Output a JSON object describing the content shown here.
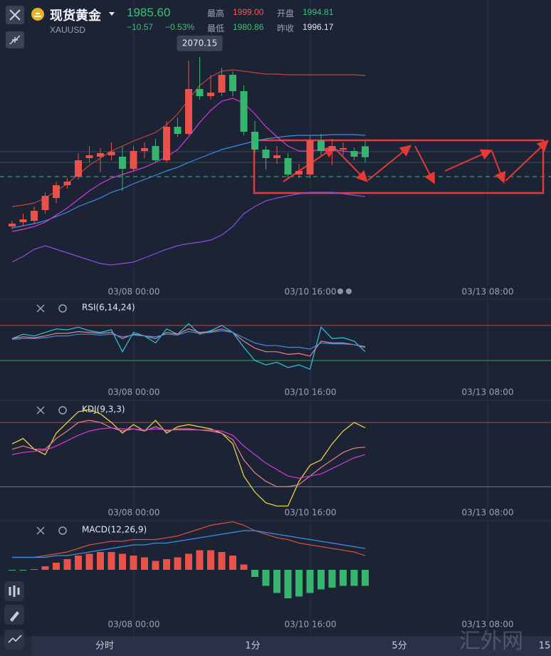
{
  "header": {
    "name": "现货黄金",
    "symbol": "XAUUSD",
    "price": "1985.60",
    "change": "−10.57",
    "change_pct": "−0.53%",
    "stats": [
      {
        "label": "最高",
        "value": "1999.00",
        "color": "#f05a50"
      },
      {
        "label": "开盘",
        "value": "1994.81",
        "color": "#3cc07a"
      },
      {
        "label": "最低",
        "value": "1980.86",
        "color": "#3cc07a"
      },
      {
        "label": "昨收",
        "value": "1996.17",
        "color": "#e6e9ef"
      }
    ]
  },
  "chart_data": [
    {
      "type": "candlestick",
      "up_color": "#e8524a",
      "down_color": "#35b56e",
      "ylim": [
        1878,
        2118
      ],
      "x_labels": [
        "03/08 00:00",
        "03/10 16:00",
        "03/13 08:00"
      ],
      "open": [
        1927.2,
        1930.8,
        1932,
        1941,
        1951.2,
        1962,
        1969.2,
        1984.8,
        1986,
        1987.2,
        1986,
        1975.8,
        1990.8,
        1995,
        1983,
        2011.2,
        2005.2,
        2043,
        2037,
        2040,
        2055,
        2041.2,
        2007,
        1992,
        1984.8,
        1984.8,
        1971,
        1971,
        1999.8,
        1990.8,
        1992,
        1990.8,
        1994.81
      ],
      "close": [
        1929.6,
        1933.2,
        1940.4,
        1953,
        1962,
        1965,
        1983,
        1987.2,
        1989,
        1990.2,
        1975.8,
        1990.8,
        1993.2,
        1983,
        2011.2,
        2005.2,
        2043,
        2037,
        2040,
        2055,
        2041.2,
        2007,
        1992,
        1984.8,
        1987.2,
        1971,
        1974,
        1999.8,
        1990.8,
        1995,
        1993.2,
        1986,
        1985.6
      ],
      "high": [
        1932,
        1938,
        1944,
        1956,
        1965,
        1968,
        1989,
        1995,
        1993.2,
        1998,
        1995,
        1995,
        1998,
        2001,
        2016,
        2019,
        2067,
        2070.15,
        2055,
        2061,
        2058,
        2046,
        2016,
        1995,
        1995,
        1989,
        1980,
        2004,
        2005.2,
        2001,
        1998,
        1993.8,
        1999
      ],
      "low": [
        1924.8,
        1927.2,
        1929,
        1938,
        1947,
        1959,
        1966.8,
        1981.2,
        1972.8,
        1983,
        1957.2,
        1974,
        1984.8,
        1981.2,
        1981.2,
        2002.8,
        2004,
        2034,
        2034,
        2037,
        2037,
        2004,
        1989,
        1975.2,
        1980,
        1968,
        1968,
        1968,
        1987.2,
        1978.8,
        1987.2,
        1983,
        1980.86
      ],
      "series": [
        {
          "color": "#c0463a",
          "values": [
            1944,
            1945.2,
            1947,
            1951.2,
            1957.2,
            1963.2,
            1971,
            1978.8,
            1984.8,
            1990.8,
            1995,
            1999.2,
            2002.8,
            2006.4,
            2013,
            2022,
            2034,
            2046,
            2053.2,
            2058,
            2059.2,
            2058,
            2056.8,
            2055.6,
            2055.6,
            2055,
            2055,
            2055,
            2055,
            2055,
            2055,
            2055,
            2054.4
          ]
        },
        {
          "color": "#3d8ee8",
          "values": [
            1926,
            1927.8,
            1929.6,
            1932,
            1935.6,
            1939.2,
            1944,
            1947.6,
            1951.2,
            1956,
            1959,
            1963.2,
            1966.8,
            1970.4,
            1974,
            1977,
            1981.2,
            1984.8,
            1988.4,
            1992,
            1994.4,
            1996.8,
            1999.2,
            2001,
            2002.2,
            2003.4,
            2004,
            2004,
            2004,
            2004.6,
            2004.6,
            2004.6,
            2004
          ]
        },
        {
          "color": "#d63ad6",
          "values": [
            1923,
            1924.8,
            1927.2,
            1930.8,
            1936.8,
            1942.8,
            1950,
            1957.2,
            1963.2,
            1968,
            1971,
            1974,
            1977,
            1981.2,
            1986,
            1992,
            2002.8,
            2014.8,
            2025,
            2032.8,
            2035.2,
            2031,
            2022,
            2011.2,
            2002.8,
            1995,
            1990.8,
            1990.8,
            1992,
            1992,
            1990.8,
            1989.6,
            1988.4
          ]
        },
        {
          "color": "#8a4fe0",
          "values": [
            1897.2,
            1902,
            1908,
            1911,
            1908,
            1905,
            1902,
            1899,
            1896,
            1894.8,
            1896,
            1897.2,
            1900.8,
            1904.4,
            1908,
            1911,
            1912.8,
            1914,
            1915.8,
            1920,
            1927.2,
            1938,
            1944,
            1948.8,
            1951.2,
            1953,
            1954.8,
            1956,
            1956,
            1956,
            1954.8,
            1953.6,
            1952.4
          ]
        }
      ]
    },
    {
      "type": "line",
      "title": "RSI(6,14,24)",
      "ylim": [
        0,
        100
      ],
      "x_labels": [
        "03/08 00:00",
        "03/10 16:00",
        "03/13 08:00"
      ],
      "levels": [
        {
          "value": 70,
          "color": "#b04a56"
        },
        {
          "value": 30,
          "color": "#3a9a5a"
        }
      ],
      "series": [
        {
          "color": "#31c6dc",
          "values": [
            55,
            60,
            58,
            62,
            66,
            65,
            68,
            64,
            62,
            65,
            40,
            62,
            58,
            50,
            66,
            60,
            72,
            60,
            64,
            70,
            62,
            45,
            30,
            25,
            28,
            22,
            25,
            20,
            68,
            55,
            56,
            52,
            40
          ]
        },
        {
          "color": "#e8828a",
          "values": [
            55,
            57,
            56,
            58,
            61,
            61,
            63,
            62,
            61,
            62,
            55,
            60,
            58,
            55,
            62,
            60,
            66,
            62,
            63,
            66,
            62,
            52,
            44,
            40,
            40,
            37,
            38,
            35,
            52,
            50,
            50,
            48,
            45
          ]
        },
        {
          "color": "#3d8ee8",
          "values": [
            54,
            55,
            55,
            56,
            58,
            58,
            60,
            60,
            59,
            60,
            57,
            59,
            58,
            57,
            60,
            59,
            63,
            61,
            62,
            64,
            62,
            56,
            50,
            47,
            47,
            45,
            45,
            43,
            50,
            49,
            49,
            48,
            46
          ]
        }
      ]
    },
    {
      "type": "line",
      "title": "KDJ(9,3,3)",
      "ylim": [
        -11,
        100
      ],
      "x_labels": [
        "03/08 00:00",
        "03/10 16:00",
        "03/13 08:00"
      ],
      "levels": [
        {
          "value": 80,
          "color": "#b04a56"
        },
        {
          "value": 20,
          "color": "#3a9a5a"
        }
      ],
      "series": [
        {
          "color": "#f0e040",
          "values": [
            60,
            65,
            55,
            50,
            70,
            80,
            90,
            92,
            88,
            80,
            70,
            78,
            72,
            82,
            70,
            76,
            78,
            76,
            74,
            70,
            60,
            30,
            15,
            5,
            2,
            2,
            25,
            40,
            45,
            60,
            72,
            80,
            75
          ]
        },
        {
          "color": "#e8828a",
          "values": [
            55,
            58,
            55,
            55,
            65,
            72,
            80,
            82,
            80,
            75,
            72,
            74,
            72,
            76,
            72,
            74,
            74,
            73,
            72,
            70,
            64,
            45,
            33,
            25,
            20,
            20,
            22,
            30,
            38,
            45,
            52,
            56,
            57
          ]
        },
        {
          "color": "#d63ad6",
          "values": [
            50,
            52,
            53,
            54,
            58,
            63,
            68,
            72,
            74,
            75,
            74,
            74,
            73,
            74,
            73,
            73,
            73,
            73,
            73,
            72,
            68,
            58,
            50,
            42,
            36,
            30,
            28,
            30,
            32,
            37,
            42,
            47,
            50
          ]
        }
      ]
    },
    {
      "type": "macd",
      "title": "MACD(12,26,9)",
      "ylim": [
        -40,
        28
      ],
      "x_labels": [
        "03/08 00:00",
        "03/10 16:00",
        "03/13 08:00"
      ],
      "up_color": "#e8524a",
      "down_color": "#35b56e",
      "values": [
        -0.4,
        -0.4,
        0.4,
        2,
        4,
        6,
        8,
        9,
        10,
        10,
        9,
        8,
        7,
        5,
        6,
        7,
        9,
        11,
        11,
        10,
        8,
        3,
        -4,
        -9,
        -13,
        -16,
        -15,
        -13,
        -11,
        -10,
        -9,
        -9,
        -9
      ],
      "series": [
        {
          "color": "#d8503c",
          "values": [
            7,
            7,
            7,
            8,
            9,
            10,
            12,
            14,
            15,
            16,
            16,
            17,
            17,
            17,
            18,
            19,
            21,
            23,
            25,
            26,
            27,
            25,
            22,
            20,
            18,
            17,
            15,
            14,
            13,
            12,
            11,
            10,
            8
          ]
        },
        {
          "color": "#3d8ee8",
          "values": [
            7,
            7,
            7,
            7,
            8,
            8,
            9,
            10,
            11,
            12,
            13,
            14,
            14,
            15,
            15,
            16,
            17,
            18,
            19,
            20,
            21,
            22,
            22,
            21,
            20,
            19,
            18,
            17,
            16,
            15,
            14,
            13,
            12
          ]
        }
      ]
    }
  ],
  "toolbar": {
    "tabs": [
      "分时",
      "1分",
      "5分",
      "15"
    ]
  },
  "watermark": "汇外网"
}
